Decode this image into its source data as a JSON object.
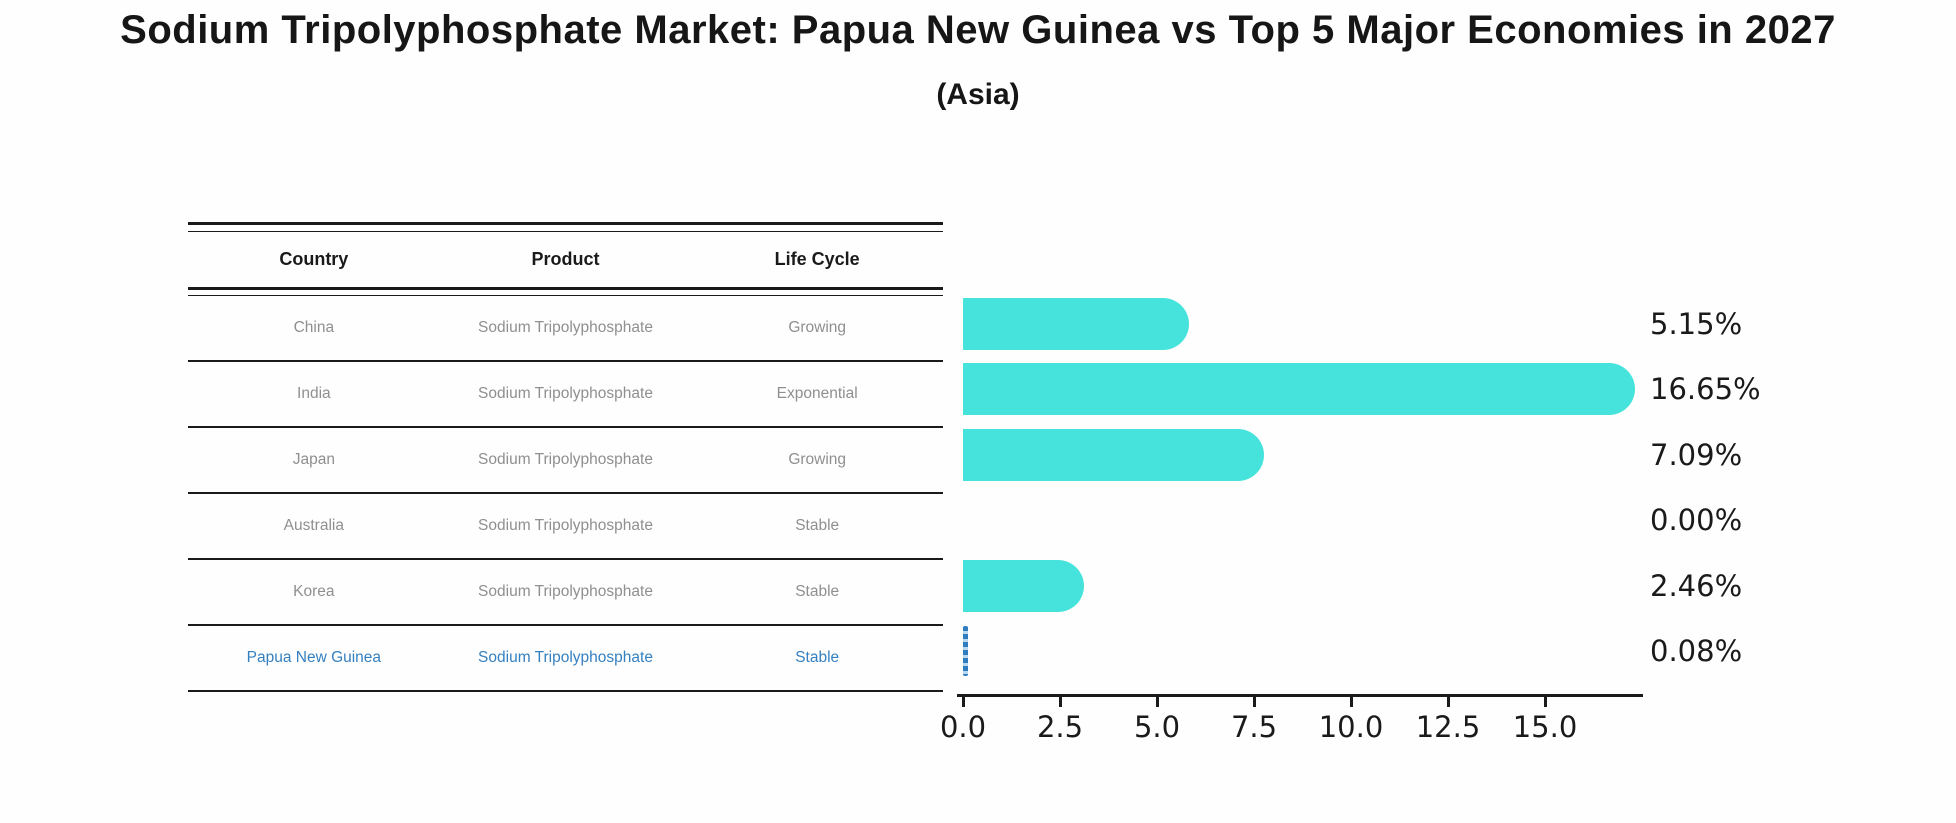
{
  "title": "Sodium Tripolyphosphate Market: Papua New Guinea vs Top 5 Major Economies in 2027",
  "subtitle": "(Asia)",
  "table": {
    "headers": [
      "Country",
      "Product",
      "Life Cycle"
    ],
    "rows": [
      {
        "country": "China",
        "product": "Sodium Tripolyphosphate",
        "life_cycle": "Growing",
        "highlighted": false
      },
      {
        "country": "India",
        "product": "Sodium Tripolyphosphate",
        "life_cycle": "Exponential",
        "highlighted": false
      },
      {
        "country": "Japan",
        "product": "Sodium Tripolyphosphate",
        "life_cycle": "Growing",
        "highlighted": false
      },
      {
        "country": "Australia",
        "product": "Sodium Tripolyphosphate",
        "life_cycle": "Stable",
        "highlighted": false
      },
      {
        "country": "Korea",
        "product": "Sodium Tripolyphosphate",
        "life_cycle": "Stable",
        "highlighted": false
      },
      {
        "country": "Papua New Guinea",
        "product": "Sodium Tripolyphosphate",
        "life_cycle": "Stable",
        "highlighted": true
      }
    ]
  },
  "chart_data": {
    "type": "bar",
    "orientation": "horizontal",
    "title": "Sodium Tripolyphosphate Market: Papua New Guinea vs Top 5 Major Economies in 2027 (Asia)",
    "categories": [
      "China",
      "India",
      "Japan",
      "Australia",
      "Korea",
      "Papua New Guinea"
    ],
    "values": [
      5.15,
      16.65,
      7.09,
      0.0,
      2.46,
      0.08
    ],
    "value_labels": [
      "5.15%",
      "16.65%",
      "7.09%",
      "0.00%",
      "2.46%",
      "0.08%"
    ],
    "x_ticks": [
      0.0,
      2.5,
      5.0,
      7.5,
      10.0,
      12.5,
      15.0
    ],
    "x_tick_labels": [
      "0.0",
      "2.5",
      "5.0",
      "7.5",
      "10.0",
      "12.5",
      "15.0"
    ],
    "xlim": [
      0,
      17.5
    ],
    "xlabel": "",
    "ylabel": "",
    "grid": false,
    "legend": false,
    "bar_color": "#45e3dc",
    "highlight_color": "#2e7ebf",
    "highlight_index": 5
  },
  "colors": {
    "bar": "#45e3dc",
    "highlight_blue": "#2e7ebf",
    "highlight_text": "#3580c0",
    "table_text": "#8f8f8f",
    "ink": "#1a1a1a",
    "background": "#fefefe"
  }
}
